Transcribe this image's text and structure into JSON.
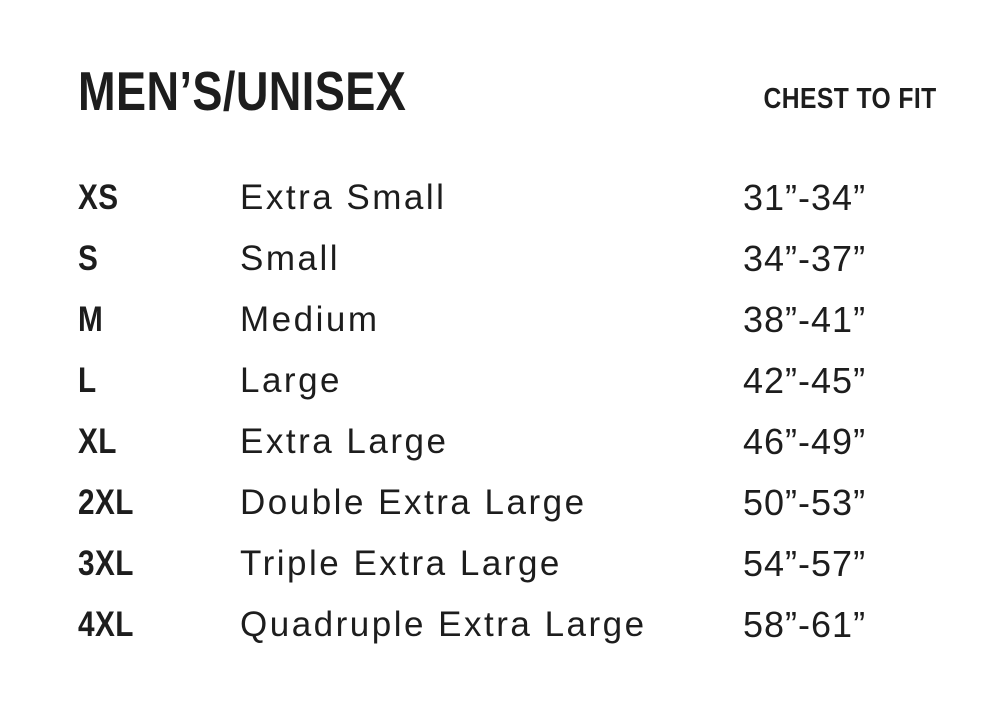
{
  "page": {
    "title": "MEN’S/UNISEX",
    "column_header": "CHEST TO FIT"
  },
  "colors": {
    "text": "#1d1d1d",
    "background": "#ffffff"
  },
  "size_chart": {
    "rows": [
      {
        "code": "XS",
        "name": "Extra Small",
        "chest": "31”-34”"
      },
      {
        "code": "S",
        "name": "Small",
        "chest": "34”-37”"
      },
      {
        "code": "M",
        "name": "Medium",
        "chest": "38”-41”"
      },
      {
        "code": "L",
        "name": "Large",
        "chest": "42”-45”"
      },
      {
        "code": "XL",
        "name": "Extra Large",
        "chest": "46”-49”"
      },
      {
        "code": "2XL",
        "name": "Double Extra Large",
        "chest": "50”-53”"
      },
      {
        "code": "3XL",
        "name": "Triple Extra Large",
        "chest": "54”-57”"
      },
      {
        "code": "4XL",
        "name": "Quadruple Extra Large",
        "chest": "58”-61”"
      }
    ]
  }
}
